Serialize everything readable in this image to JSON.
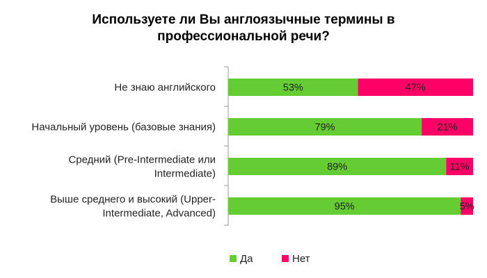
{
  "chart_data": {
    "type": "bar",
    "orientation": "horizontal",
    "stacked": "100%",
    "title": "Используете ли Вы англоязычные термины в профессиональной речи?",
    "title_lines": [
      "Используете ли Вы англоязычные термины в",
      "профессиональной речи?"
    ],
    "categories": [
      "Не знаю английского",
      "Начальный уровень (базовые знания)",
      "Средний (Pre-Intermediate или Intermediate)",
      "Выше среднего и высокий (Upper-Intermediate, Advanced)"
    ],
    "category_lines": [
      [
        "Не знаю английского"
      ],
      [
        "Начальный уровень (базовые знания)"
      ],
      [
        "Средний (Pre-Intermediate или",
        "Intermediate)"
      ],
      [
        "Выше среднего и высокий (Upper-",
        "Intermediate, Advanced)"
      ]
    ],
    "series": [
      {
        "name": "Да",
        "values": [
          53,
          79,
          89,
          95
        ],
        "labels": [
          "53%",
          "79%",
          "89%",
          "95%"
        ],
        "color": "#66cc33"
      },
      {
        "name": "Нет",
        "values": [
          47,
          21,
          11,
          5
        ],
        "labels": [
          "47%",
          "21%",
          "11%",
          "5%"
        ],
        "color": "#ff0066"
      }
    ],
    "xlim": [
      0,
      100
    ],
    "unit": "%",
    "grid": false,
    "legend_position": "bottom"
  }
}
